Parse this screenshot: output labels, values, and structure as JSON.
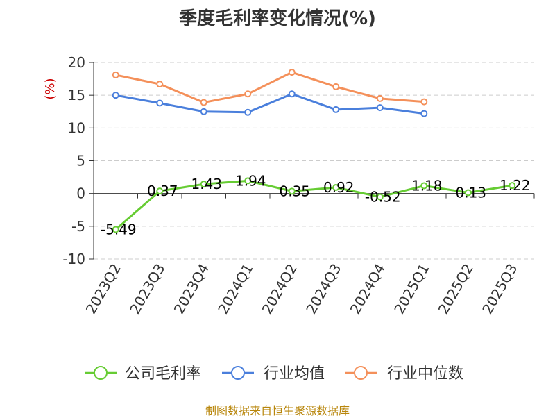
{
  "title": "季度毛利率变化情况(%)",
  "source": "制图数据来自恒生聚源数据库",
  "chart_data": {
    "type": "line",
    "title": "季度毛利率变化情况(%)",
    "ylabel": "(%)",
    "xlabel": "",
    "ylim": [
      -10,
      20
    ],
    "yticks": [
      -10,
      -5,
      0,
      5,
      10,
      15,
      20
    ],
    "grid": true,
    "legend_position": "bottom",
    "categories": [
      "2023Q2",
      "2023Q3",
      "2023Q4",
      "2024Q1",
      "2024Q2",
      "2024Q3",
      "2024Q4",
      "2025Q1",
      "2025Q2",
      "2025Q3"
    ],
    "series": [
      {
        "name": "公司毛利率",
        "color": "#66cc33",
        "values": [
          -5.49,
          0.37,
          1.43,
          1.94,
          0.35,
          0.92,
          -0.52,
          1.18,
          0.13,
          1.22
        ],
        "labels": [
          "-5.49",
          "0.37",
          "1.43",
          "1.94",
          "0.35",
          "0.92",
          "-0.52",
          "1.18",
          "0.13",
          "1.22"
        ]
      },
      {
        "name": "行业均值",
        "color": "#4a7fdc",
        "values": [
          15.0,
          13.8,
          12.5,
          12.4,
          15.2,
          12.8,
          13.1,
          12.2,
          null,
          null
        ]
      },
      {
        "name": "行业中位数",
        "color": "#f4905a",
        "values": [
          18.1,
          16.7,
          13.9,
          15.2,
          18.5,
          16.3,
          14.5,
          14.0,
          null,
          null
        ]
      }
    ]
  }
}
